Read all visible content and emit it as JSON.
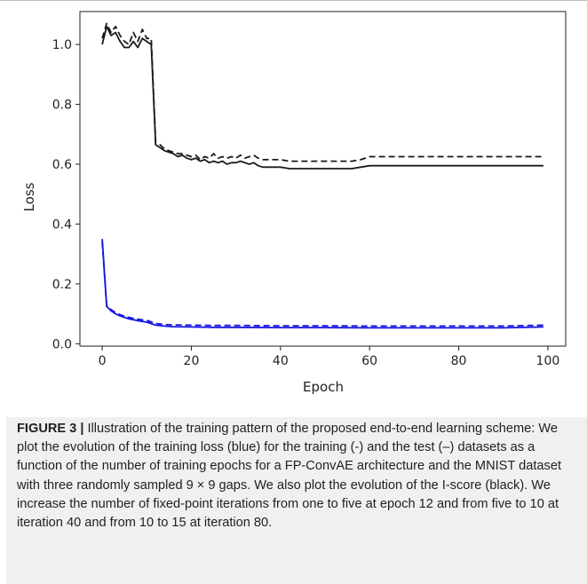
{
  "chart_data": {
    "type": "line",
    "xlabel": "Epoch",
    "ylabel": "Loss",
    "xlim": [
      -5,
      104
    ],
    "ylim": [
      -0.008,
      1.11
    ],
    "x_ticks": [
      0,
      20,
      40,
      60,
      80,
      100
    ],
    "x_tick_labels": [
      "0",
      "20",
      "40",
      "60",
      "80",
      "100"
    ],
    "y_ticks": [
      0.0,
      0.2,
      0.4,
      0.6,
      0.8,
      1.0
    ],
    "y_tick_labels": [
      "0.0",
      "0.2",
      "0.4",
      "0.6",
      "0.8",
      "1.0"
    ],
    "grid": false,
    "series": [
      {
        "color": "#1a1a1a",
        "dash": "solid",
        "x": [
          0,
          1,
          2,
          3,
          4,
          5,
          6,
          7,
          8,
          9,
          10,
          11,
          12,
          13,
          14,
          15,
          16,
          17,
          18,
          19,
          20,
          21,
          22,
          23,
          24,
          25,
          26,
          27,
          28,
          29,
          30,
          31,
          32,
          33,
          34,
          35,
          36,
          38,
          40,
          42,
          44,
          46,
          48,
          50,
          52,
          54,
          56,
          58,
          60,
          65,
          70,
          75,
          80,
          85,
          90,
          95,
          99
        ],
        "y": [
          1.0,
          1.06,
          1.03,
          1.04,
          1.01,
          0.99,
          0.99,
          1.01,
          0.99,
          1.02,
          1.01,
          1.0,
          0.665,
          0.655,
          0.645,
          0.64,
          0.635,
          0.625,
          0.63,
          0.62,
          0.615,
          0.62,
          0.61,
          0.615,
          0.605,
          0.61,
          0.605,
          0.61,
          0.6,
          0.605,
          0.605,
          0.61,
          0.605,
          0.6,
          0.605,
          0.595,
          0.59,
          0.59,
          0.59,
          0.585,
          0.585,
          0.585,
          0.585,
          0.585,
          0.585,
          0.585,
          0.585,
          0.59,
          0.595,
          0.595,
          0.595,
          0.595,
          0.595,
          0.595,
          0.595,
          0.595,
          0.595
        ]
      },
      {
        "color": "#1a1a1a",
        "dash": "dashed",
        "x": [
          0,
          1,
          2,
          3,
          4,
          5,
          6,
          7,
          8,
          9,
          10,
          11,
          12,
          13,
          14,
          15,
          16,
          17,
          18,
          19,
          20,
          21,
          22,
          23,
          24,
          25,
          26,
          27,
          28,
          29,
          30,
          31,
          32,
          33,
          34,
          35,
          36,
          38,
          40,
          42,
          44,
          46,
          48,
          50,
          52,
          54,
          56,
          58,
          60,
          65,
          70,
          75,
          80,
          85,
          90,
          95,
          99
        ],
        "y": [
          1.02,
          1.07,
          1.04,
          1.06,
          1.03,
          1.01,
          1.0,
          1.04,
          1.01,
          1.05,
          1.02,
          1.02,
          0.67,
          0.665,
          0.65,
          0.645,
          0.64,
          0.635,
          0.635,
          0.63,
          0.625,
          0.63,
          0.615,
          0.625,
          0.62,
          0.635,
          0.62,
          0.625,
          0.62,
          0.625,
          0.62,
          0.63,
          0.62,
          0.625,
          0.63,
          0.62,
          0.615,
          0.615,
          0.615,
          0.61,
          0.61,
          0.61,
          0.61,
          0.61,
          0.61,
          0.61,
          0.61,
          0.615,
          0.625,
          0.625,
          0.625,
          0.625,
          0.625,
          0.625,
          0.625,
          0.625,
          0.625
        ]
      },
      {
        "color": "#1515e0",
        "dash": "solid",
        "x": [
          0,
          1,
          2,
          3,
          4,
          5,
          6,
          8,
          10,
          12,
          14,
          16,
          20,
          25,
          30,
          40,
          50,
          60,
          70,
          80,
          90,
          99
        ],
        "y": [
          0.35,
          0.125,
          0.11,
          0.1,
          0.093,
          0.088,
          0.083,
          0.077,
          0.072,
          0.062,
          0.059,
          0.057,
          0.056,
          0.055,
          0.055,
          0.054,
          0.054,
          0.053,
          0.053,
          0.053,
          0.053,
          0.056
        ]
      },
      {
        "color": "#1515e0",
        "dash": "dashed",
        "x": [
          0,
          1,
          2,
          3,
          4,
          5,
          6,
          8,
          10,
          12,
          14,
          16,
          20,
          25,
          30,
          40,
          50,
          60,
          70,
          80,
          90,
          99
        ],
        "y": [
          0.34,
          0.128,
          0.114,
          0.104,
          0.097,
          0.092,
          0.088,
          0.082,
          0.078,
          0.068,
          0.064,
          0.063,
          0.062,
          0.061,
          0.061,
          0.06,
          0.06,
          0.059,
          0.059,
          0.059,
          0.059,
          0.062
        ]
      }
    ]
  },
  "caption": {
    "label": "FIGURE 3 |",
    "text": " Illustration of the training pattern of the proposed end-to-end learning scheme: We plot the evolution of the training loss (blue) for the training (-) and the test (–) datasets as a function of the number of training epochs for a FP-ConvAE architecture and the MNIST dataset with three randomly sampled 9 × 9 gaps. We also plot the evolution of the I-score (black). We increase the number of fixed-point iterations from one to five at epoch 12 and from five to 10 at iteration 40 and from 10 to 15 at iteration 80."
  }
}
